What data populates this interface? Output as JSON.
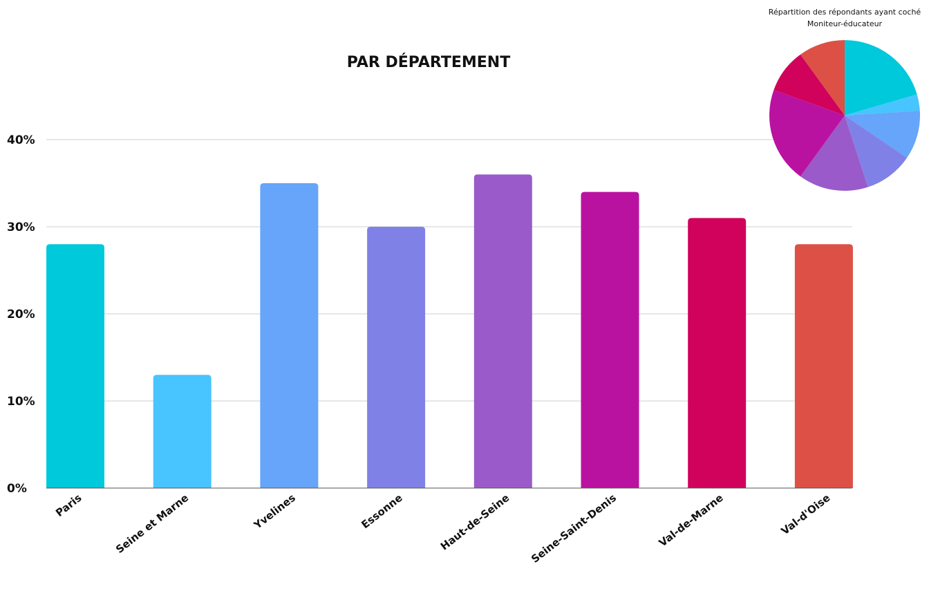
{
  "chart_data": [
    {
      "type": "bar",
      "title": "PAR DÉPARTEMENT",
      "xlabel": "",
      "ylabel": "",
      "categories": [
        "Paris",
        "Seine et Marne",
        "Yvelines",
        "Essonne",
        "Haut-de-Seine",
        "Seine-Saint-Denis",
        "Val-de-Marne",
        "Val-d'Oise"
      ],
      "values": [
        28,
        13,
        35,
        30,
        36,
        34,
        31,
        28
      ],
      "ylim": [
        0,
        40
      ],
      "yticks": [
        0,
        10,
        20,
        30,
        40
      ],
      "ytick_labels": [
        "0%",
        "10%",
        "20%",
        "30%",
        "40%"
      ],
      "grid": true,
      "colors": [
        "#00C9DB",
        "#48C4FF",
        "#66A5F9",
        "#8081E6",
        "#9A5AC9",
        "#BA12A0",
        "#D0025C",
        "#DD5046"
      ]
    },
    {
      "type": "pie",
      "title_lines": [
        "Répartition des répondants ayant coché",
        "Moniteur-éducateur"
      ],
      "categories": [
        "Paris",
        "Seine et Marne",
        "Yvelines",
        "Essonne",
        "Haut-de-Seine",
        "Seine-Saint-Denis",
        "Val-de-Marne",
        "Val-d'Oise"
      ],
      "values": [
        20.5,
        3.5,
        10.5,
        10.5,
        15.0,
        20.5,
        9.5,
        10.0
      ],
      "colors": [
        "#00C9DB",
        "#48C4FF",
        "#66A5F9",
        "#8081E6",
        "#9A5AC9",
        "#BA12A0",
        "#D0025C",
        "#DD5046"
      ]
    }
  ]
}
